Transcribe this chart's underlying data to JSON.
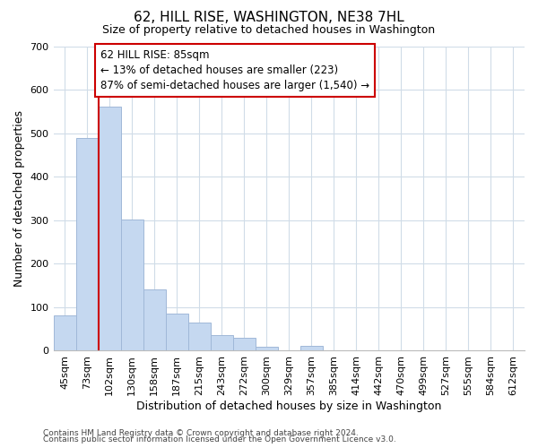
{
  "title": "62, HILL RISE, WASHINGTON, NE38 7HL",
  "subtitle": "Size of property relative to detached houses in Washington",
  "xlabel": "Distribution of detached houses by size in Washington",
  "ylabel": "Number of detached properties",
  "bar_labels": [
    "45sqm",
    "73sqm",
    "102sqm",
    "130sqm",
    "158sqm",
    "187sqm",
    "215sqm",
    "243sqm",
    "272sqm",
    "300sqm",
    "329sqm",
    "357sqm",
    "385sqm",
    "414sqm",
    "442sqm",
    "470sqm",
    "499sqm",
    "527sqm",
    "555sqm",
    "584sqm",
    "612sqm"
  ],
  "bar_values": [
    82,
    488,
    560,
    302,
    140,
    86,
    65,
    35,
    30,
    10,
    0,
    12,
    0,
    0,
    0,
    0,
    0,
    0,
    0,
    0,
    0
  ],
  "bar_color": "#c5d8f0",
  "bar_edge_color": "#a0b8d8",
  "highlight_line_color": "#cc0000",
  "annotation_line1": "62 HILL RISE: 85sqm",
  "annotation_line2": "← 13% of detached houses are smaller (223)",
  "annotation_line3": "87% of semi-detached houses are larger (1,540) →",
  "annotation_box_color": "#ffffff",
  "annotation_box_edge": "#cc0000",
  "ylim": [
    0,
    700
  ],
  "yticks": [
    0,
    100,
    200,
    300,
    400,
    500,
    600,
    700
  ],
  "footer1": "Contains HM Land Registry data © Crown copyright and database right 2024.",
  "footer2": "Contains public sector information licensed under the Open Government Licence v3.0.",
  "bg_color": "#ffffff",
  "grid_color": "#d0dce8",
  "title_fontsize": 11,
  "subtitle_fontsize": 9,
  "xlabel_fontsize": 9,
  "ylabel_fontsize": 9,
  "tick_fontsize": 8,
  "annotation_fontsize": 8.5,
  "footer_fontsize": 6.5
}
